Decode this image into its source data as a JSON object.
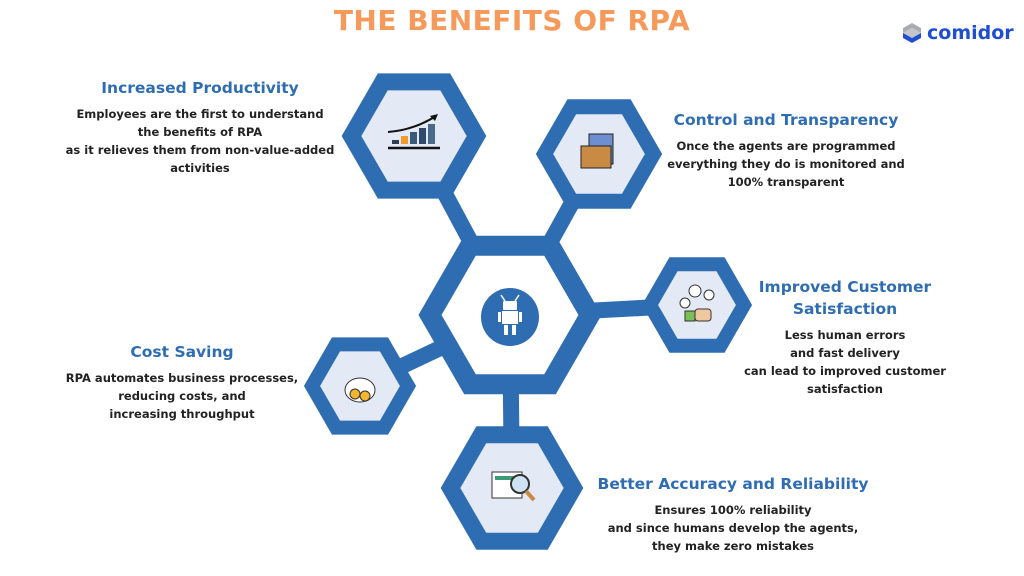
{
  "title": "THE BENEFITS OF RPA",
  "logo": {
    "text": "comidor"
  },
  "colors": {
    "title": "#f59a5b",
    "accent": "#2f6db3",
    "hex_fill": "#e4eaf5",
    "body": "#222222"
  },
  "center_icon": "robot-icon",
  "benefits": [
    {
      "title": [
        "Increased Productivity"
      ],
      "body": [
        "Employees are the first to understand",
        "the benefits of RPA",
        "as it relieves them from non-value-added",
        "activities"
      ],
      "icon": "growth-chart-icon"
    },
    {
      "title": [
        "Control and Transparency"
      ],
      "body": [
        "Once the agents are programmed",
        "everything they do is monitored and",
        "100% transparent"
      ],
      "icon": "folder-document-icon"
    },
    {
      "title": [
        "Improved Customer",
        "Satisfaction"
      ],
      "body": [
        "Less human errors",
        "and fast delivery",
        "can lead to improved customer",
        "satisfaction"
      ],
      "icon": "customer-thumbs-up-icon"
    },
    {
      "title": [
        "Cost Saving"
      ],
      "body": [
        "RPA automates business processes,",
        "reducing costs, and",
        "increasing throughput"
      ],
      "icon": "money-bag-icon"
    },
    {
      "title": [
        "Better Accuracy and Reliability"
      ],
      "body": [
        "Ensures 100% reliability",
        "and since humans develop the agents,",
        "they make zero mistakes"
      ],
      "icon": "document-magnifier-icon"
    }
  ]
}
